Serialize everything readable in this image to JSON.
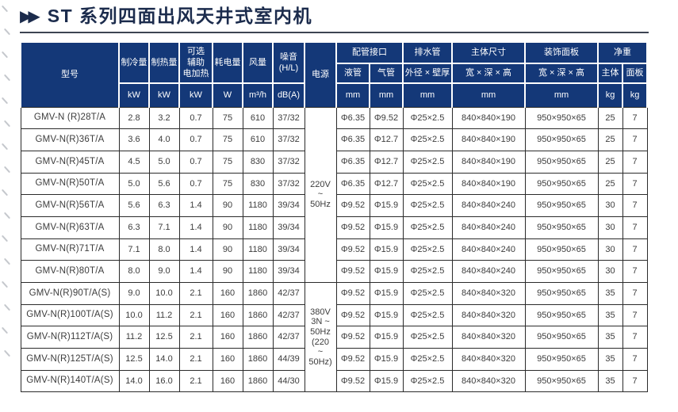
{
  "page": {
    "title_marker": "▶▶",
    "title": "ST 系列四面出风天井式室内机"
  },
  "colors": {
    "header_bg": "#143878",
    "title_text": "#1b2b4c",
    "body_border": "#2b2b2b",
    "rule": "#3d4452"
  },
  "table": {
    "headers": {
      "model": "型号",
      "cooling": "制冷量",
      "heating": "制热量",
      "aux_heater": "可选\n辅助\n电加热",
      "power_input": "耗电量",
      "airflow": "风量",
      "noise": "噪音\n(H/L)",
      "power_supply": "电源",
      "piping_group": "配管接口",
      "liquid_pipe": "液管",
      "gas_pipe": "气管",
      "drain_group": "排水管",
      "drain_spec": "外径 × 壁厚",
      "body_dim_group": "主体尺寸",
      "body_dim_sub": "宽 × 深 × 高",
      "panel_group": "装饰面板",
      "panel_sub": "宽 × 深 × 高",
      "weight_group": "净重",
      "weight_body": "主体",
      "weight_panel": "面板",
      "units": {
        "kw": "kW",
        "w": "W",
        "m3h": "m³/h",
        "dba": "dB(A)",
        "mm": "mm",
        "kg": "kg"
      }
    },
    "power_groups": [
      {
        "label": "220V\n~\n50Hz",
        "rows": 8
      },
      {
        "label": "380V\n3N ~\n50Hz\n(220\n~\n50Hz)",
        "rows": 5
      }
    ],
    "rows": [
      [
        "GMV-N (R)28T/A",
        "2.8",
        "3.2",
        "0.7",
        "75",
        "610",
        "37/32",
        "Φ6.35",
        "Φ9.52",
        "Φ25×2.5",
        "840×840×190",
        "950×950×65",
        "25",
        "7"
      ],
      [
        "GMV-N(R)36T/A",
        "3.6",
        "4.0",
        "0.7",
        "75",
        "610",
        "37/32",
        "Φ6.35",
        "Φ12.7",
        "Φ25×2.5",
        "840×840×190",
        "950×950×65",
        "25",
        "7"
      ],
      [
        "GMV-N(R)45T/A",
        "4.5",
        "5.0",
        "0.7",
        "75",
        "830",
        "37/32",
        "Φ6.35",
        "Φ12.7",
        "Φ25×2.5",
        "840×840×190",
        "950×950×65",
        "25",
        "7"
      ],
      [
        "GMV-N(R)50T/A",
        "5.0",
        "5.6",
        "0.7",
        "75",
        "830",
        "37/32",
        "Φ6.35",
        "Φ12.7",
        "Φ25×2.5",
        "840×840×190",
        "950×950×65",
        "25",
        "7"
      ],
      [
        "GMV-N(R)56T/A",
        "5.6",
        "6.3",
        "1.4",
        "90",
        "1180",
        "39/34",
        "Φ9.52",
        "Φ15.9",
        "Φ25×2.5",
        "840×840×240",
        "950×950×65",
        "30",
        "7"
      ],
      [
        "GMV-N(R)63T/A",
        "6.3",
        "7.1",
        "1.4",
        "90",
        "1180",
        "39/34",
        "Φ9.52",
        "Φ15.9",
        "Φ25×2.5",
        "840×840×240",
        "950×950×65",
        "30",
        "7"
      ],
      [
        "GMV-N(R)71T/A",
        "7.1",
        "8.0",
        "1.4",
        "90",
        "1180",
        "39/34",
        "Φ9.52",
        "Φ15.9",
        "Φ25×2.5",
        "840×840×240",
        "950×950×65",
        "30",
        "7"
      ],
      [
        "GMV-N(R)80T/A",
        "8.0",
        "9.0",
        "1.4",
        "90",
        "1180",
        "39/34",
        "Φ9.52",
        "Φ15.9",
        "Φ25×2.5",
        "840×840×240",
        "950×950×65",
        "30",
        "7"
      ],
      [
        "GMV-N(R)90T/A(S)",
        "9.0",
        "10.0",
        "2.1",
        "160",
        "1860",
        "42/37",
        "Φ9.52",
        "Φ15.9",
        "Φ25×2.5",
        "840×840×320",
        "950×950×65",
        "35",
        "7"
      ],
      [
        "GMV-N(R)100T/A(S)",
        "10.0",
        "11.2",
        "2.1",
        "160",
        "1860",
        "42/37",
        "Φ9.52",
        "Φ15.9",
        "Φ25×2.5",
        "840×840×320",
        "950×950×65",
        "35",
        "7"
      ],
      [
        "GMV-N(R)112T/A(S)",
        "11.2",
        "12.5",
        "2.1",
        "160",
        "1860",
        "42/37",
        "Φ9.52",
        "Φ15.9",
        "Φ25×2.5",
        "840×840×320",
        "950×950×65",
        "35",
        "7"
      ],
      [
        "GMV-N(R)125T/A(S)",
        "12.5",
        "14.0",
        "2.1",
        "160",
        "1860",
        "44/39",
        "Φ9.52",
        "Φ15.9",
        "Φ25×2.5",
        "840×840×320",
        "950×950×65",
        "35",
        "7"
      ],
      [
        "GMV-N(R)140T/A(S)",
        "14.0",
        "16.0",
        "2.1",
        "160",
        "1860",
        "44/30",
        "Φ9.52",
        "Φ15.9",
        "Φ25×2.5",
        "840×840×320",
        "950×950×65",
        "35",
        "7"
      ]
    ]
  }
}
